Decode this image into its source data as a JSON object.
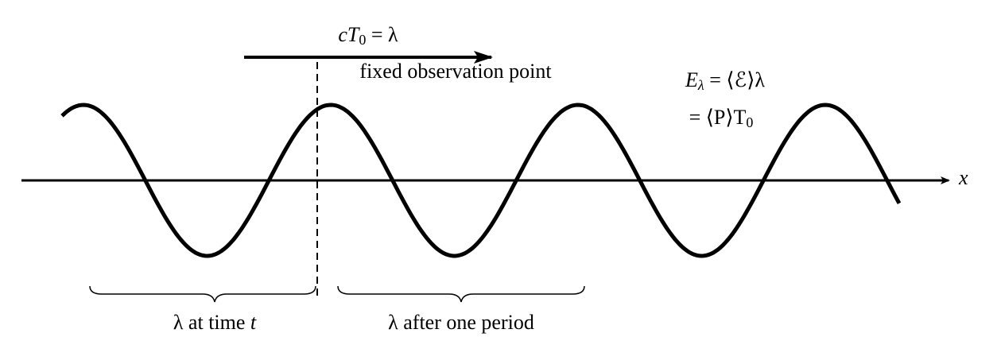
{
  "arrow_label": {
    "main": "cT",
    "sub": "0",
    "rest": " = λ"
  },
  "observation_label": "fixed observation point",
  "energy_label": {
    "line1": {
      "main": "E",
      "sub": "λ",
      "rest": " = ⟨ℰ⟩λ"
    },
    "line2": {
      "main": "= ⟨P⟩T",
      "sub": "0"
    }
  },
  "axis_label": "x",
  "brace_labels": {
    "first": {
      "main": "λ at time ",
      "var": "t"
    },
    "second": "λ after one period"
  }
}
